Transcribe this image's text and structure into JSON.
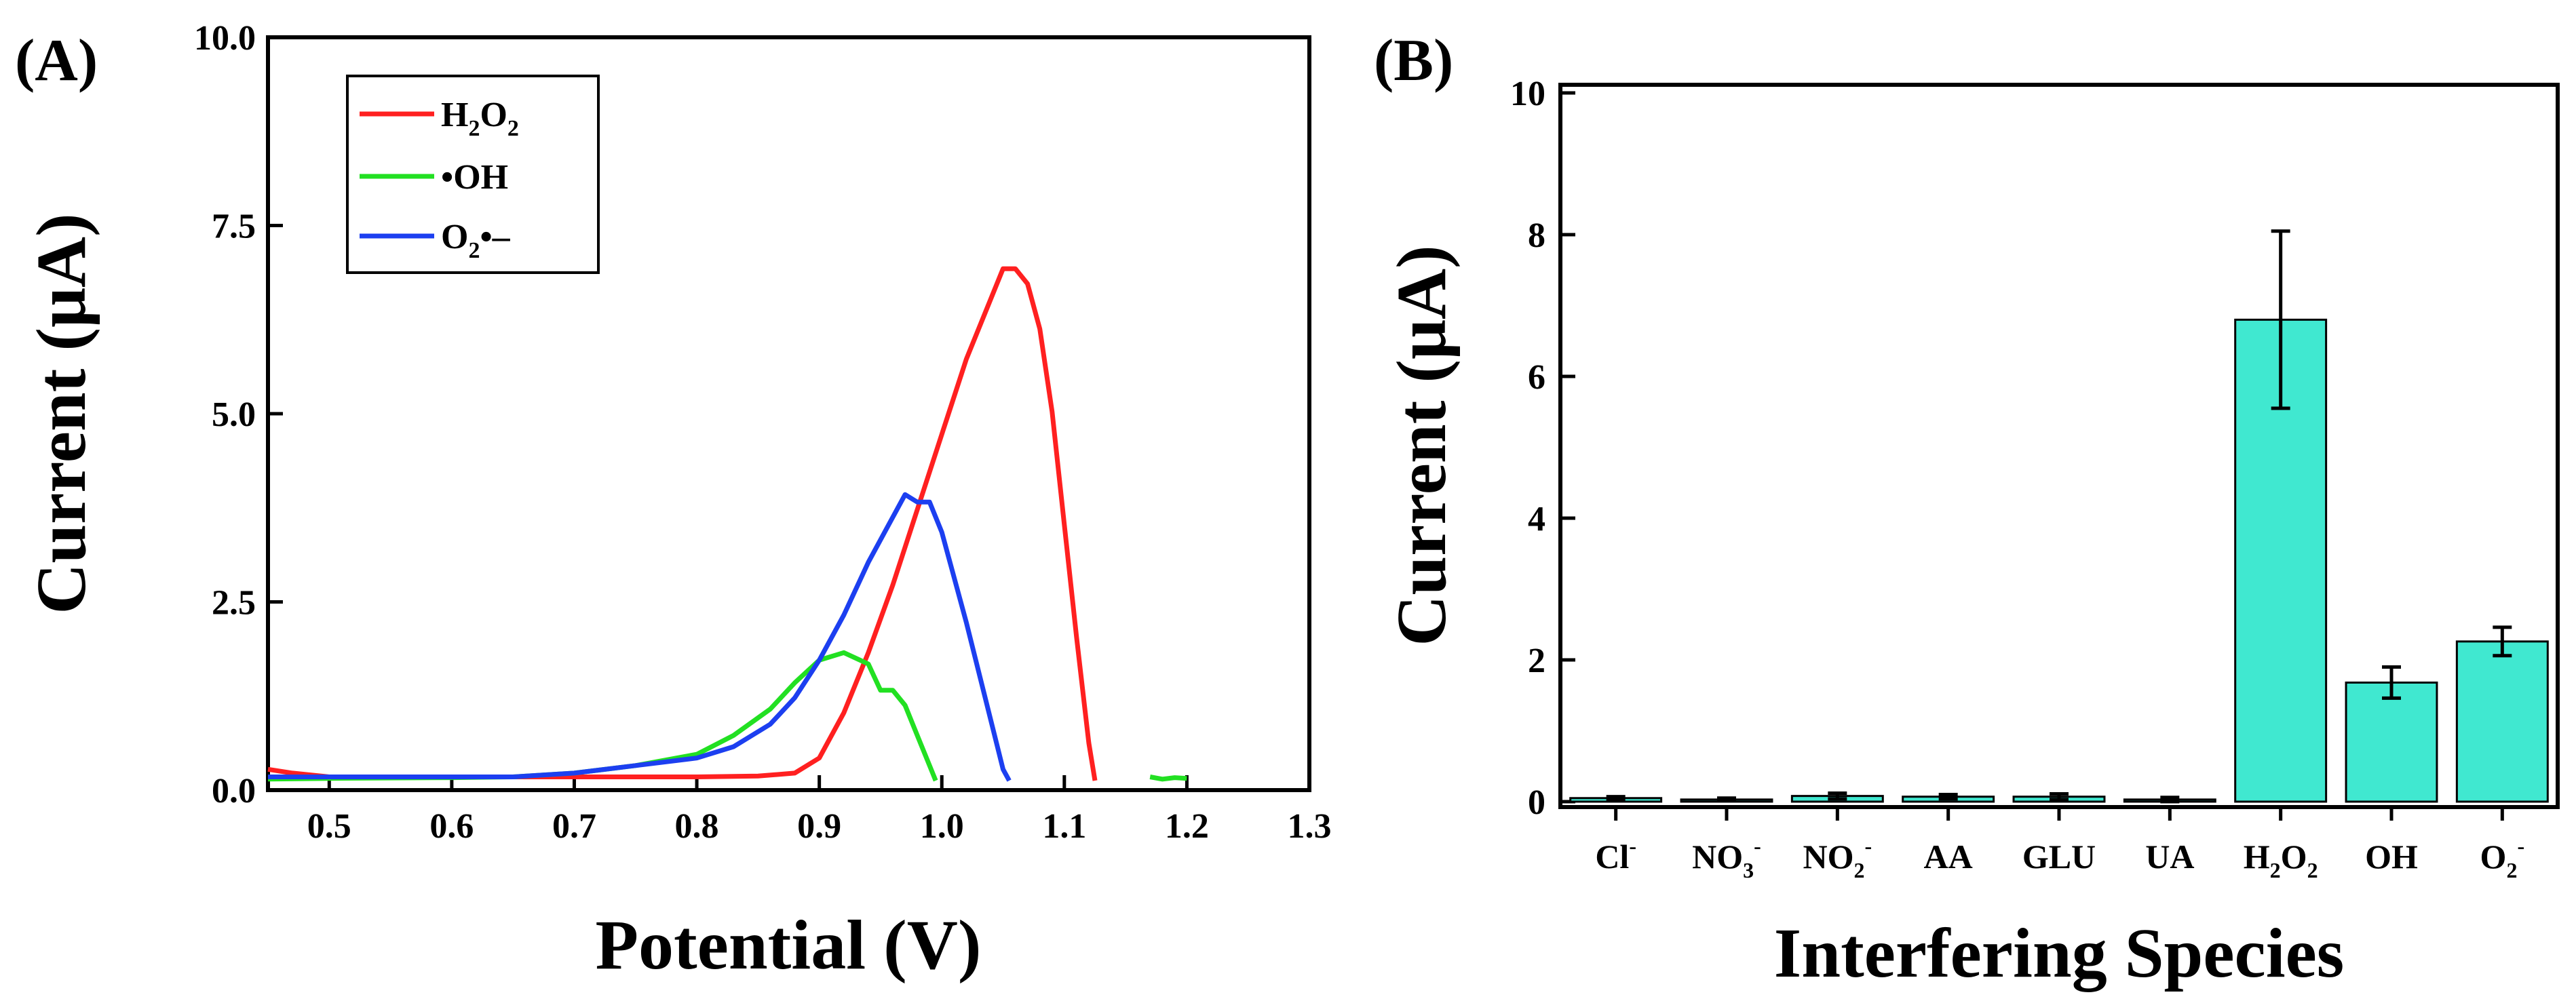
{
  "chart_data": [
    {
      "type": "line",
      "panel_label": "(A)",
      "title": "",
      "xlabel": "Potential (V)",
      "ylabel": "Current (μA)",
      "xlim": [
        0.45,
        1.3
      ],
      "ylim": [
        0,
        10
      ],
      "x_ticks": [
        0.5,
        0.6,
        0.7,
        0.8,
        0.9,
        1.0,
        1.1,
        1.2,
        1.3
      ],
      "x_tick_labels": [
        "0.5",
        "0.6",
        "0.7",
        "0.8",
        "0.9",
        "1.0",
        "1.1",
        "1.2",
        "1.3"
      ],
      "y_ticks": [
        0,
        2.5,
        5,
        7.5,
        10
      ],
      "y_tick_labels": [
        "0.0",
        "2.5",
        "5.0",
        "7.5",
        "10.0"
      ],
      "legend_position": "top-left",
      "series": [
        {
          "name": "H2O2",
          "label_main": "H",
          "label_sub1": "2",
          "label_mid": "O",
          "label_sub2": "2",
          "color": "#ff2020",
          "x": [
            0.45,
            0.47,
            0.5,
            0.6,
            0.7,
            0.8,
            0.85,
            0.88,
            0.9,
            0.92,
            0.94,
            0.96,
            0.98,
            1.0,
            1.02,
            1.04,
            1.05,
            1.06,
            1.07,
            1.08,
            1.09,
            1.1,
            1.11,
            1.12,
            1.125
          ],
          "y": [
            0.15,
            0.1,
            0.05,
            0.05,
            0.05,
            0.05,
            0.06,
            0.1,
            0.3,
            0.9,
            1.7,
            2.6,
            3.6,
            4.6,
            5.6,
            6.4,
            6.8,
            6.8,
            6.6,
            6.0,
            4.9,
            3.4,
            1.9,
            0.5,
            0.0
          ]
        },
        {
          "name": "•OH",
          "label_main": "•OH",
          "color": "#22e022",
          "x": [
            0.45,
            0.5,
            0.6,
            0.65,
            0.7,
            0.75,
            0.8,
            0.83,
            0.86,
            0.88,
            0.9,
            0.92,
            0.94,
            0.95,
            0.96,
            0.97,
            0.98,
            0.99,
            0.995
          ],
          "y": [
            0.02,
            0.03,
            0.04,
            0.05,
            0.1,
            0.2,
            0.35,
            0.6,
            0.95,
            1.3,
            1.6,
            1.7,
            1.55,
            1.2,
            1.2,
            1.0,
            0.6,
            0.2,
            0.0
          ],
          "x_tail": [
            1.17,
            1.18,
            1.19,
            1.2
          ],
          "y_tail": [
            0.05,
            0.02,
            0.04,
            0.03
          ]
        },
        {
          "name": "O2•−",
          "label_main": "O",
          "label_sub1": "2",
          "label_suffix": "•–",
          "color": "#1c3ff0",
          "x": [
            0.45,
            0.5,
            0.6,
            0.65,
            0.7,
            0.75,
            0.8,
            0.83,
            0.86,
            0.88,
            0.9,
            0.92,
            0.94,
            0.96,
            0.97,
            0.98,
            0.99,
            1.0,
            1.02,
            1.04,
            1.05,
            1.055
          ],
          "y": [
            0.05,
            0.05,
            0.05,
            0.05,
            0.1,
            0.2,
            0.3,
            0.45,
            0.75,
            1.1,
            1.6,
            2.2,
            2.9,
            3.5,
            3.8,
            3.7,
            3.7,
            3.3,
            2.1,
            0.8,
            0.15,
            0.0
          ]
        }
      ]
    },
    {
      "type": "bar",
      "panel_label": "(B)",
      "title": "",
      "xlabel": "Interfering Species",
      "ylabel": "Current (μA)",
      "ylim": [
        0,
        10
      ],
      "y_ticks": [
        0,
        2,
        4,
        6,
        8,
        10
      ],
      "y_tick_labels": [
        "0",
        "2",
        "4",
        "6",
        "8",
        "10"
      ],
      "bar_color": "#40e8d0",
      "categories": [
        {
          "main": "Cl",
          "sup": "-"
        },
        {
          "main": "NO",
          "sub": "3",
          "sup": "-"
        },
        {
          "main": "NO",
          "sub": "2",
          "sup": "-"
        },
        {
          "main": "AA"
        },
        {
          "main": "GLU"
        },
        {
          "main": "UA"
        },
        {
          "main": "H",
          "sub": "2",
          "main2": "O",
          "sub2": "2"
        },
        {
          "main": "OH"
        },
        {
          "main": "O",
          "sub": "2",
          "sup": "-"
        }
      ],
      "values": [
        0.05,
        0.03,
        0.08,
        0.07,
        0.07,
        0.03,
        6.8,
        1.68,
        2.26
      ],
      "errors": [
        0.02,
        0.02,
        0.04,
        0.03,
        0.04,
        0.03,
        1.25,
        0.22,
        0.2
      ]
    }
  ]
}
